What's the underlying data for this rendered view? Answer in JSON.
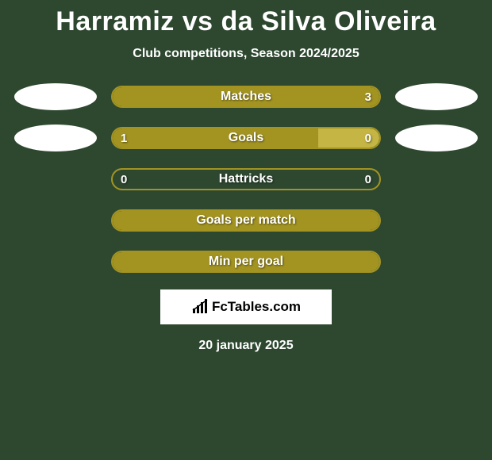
{
  "background_color": "#2e4830",
  "accent_color": "#a39422",
  "title": "Harramiz vs da Silva Oliveira",
  "title_fontsize": 34,
  "subtitle": "Club competitions, Season 2024/2025",
  "subtitle_fontsize": 16,
  "brand": "FcTables.com",
  "date_text": "20 january 2025",
  "oval_color": "#ffffff",
  "rows": [
    {
      "label": "Matches",
      "left_val": "",
      "right_val": "3",
      "show_left_oval": true,
      "show_right_oval": true,
      "border_color": "#a39422",
      "fills": [
        {
          "side": "full",
          "width_pct": 100,
          "color": "#a39422"
        }
      ]
    },
    {
      "label": "Goals",
      "left_val": "1",
      "right_val": "0",
      "show_left_oval": true,
      "show_right_oval": true,
      "border_color": "#a39422",
      "fills": [
        {
          "side": "left",
          "width_pct": 77,
          "color": "#a39422"
        },
        {
          "side": "right",
          "width_pct": 23,
          "color": "#c4b544"
        }
      ]
    },
    {
      "label": "Hattricks",
      "left_val": "0",
      "right_val": "0",
      "show_left_oval": false,
      "show_right_oval": false,
      "border_color": "#a39422",
      "fills": []
    },
    {
      "label": "Goals per match",
      "left_val": "",
      "right_val": "",
      "show_left_oval": false,
      "show_right_oval": false,
      "border_color": "#a39422",
      "fills": [
        {
          "side": "full",
          "width_pct": 100,
          "color": "#a39422"
        }
      ]
    },
    {
      "label": "Min per goal",
      "left_val": "",
      "right_val": "",
      "show_left_oval": false,
      "show_right_oval": false,
      "border_color": "#a39422",
      "fills": [
        {
          "side": "full",
          "width_pct": 100,
          "color": "#a39422"
        }
      ]
    }
  ]
}
